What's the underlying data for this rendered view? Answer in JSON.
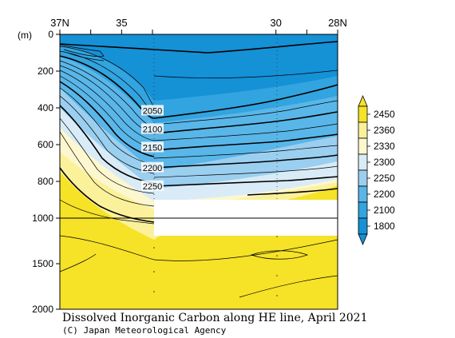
{
  "chart_data": {
    "type": "heatmap",
    "title": "Dissolved Inorganic Carbon along HE line, April 2021",
    "credit": "(C) Japan Meteorological Agency",
    "x_axis": {
      "labels": [
        {
          "lat": 37,
          "text": "37N"
        },
        {
          "lat": 35,
          "text": "35"
        },
        {
          "lat": 30,
          "text": "30"
        },
        {
          "lat": 28,
          "text": "28N"
        }
      ],
      "extra_ticks": [
        36,
        34,
        29
      ],
      "range": [
        37,
        28
      ]
    },
    "y_axis": {
      "unit": "(m)",
      "ticks": [
        {
          "depth": 0,
          "text": "0"
        },
        {
          "depth": 200,
          "text": "200"
        },
        {
          "depth": 400,
          "text": "400"
        },
        {
          "depth": 600,
          "text": "600"
        },
        {
          "depth": 800,
          "text": "800"
        },
        {
          "depth": 1000,
          "text": "1000"
        },
        {
          "depth": 1500,
          "text": "1500"
        },
        {
          "depth": 2000,
          "text": "2000"
        }
      ],
      "range": [
        0,
        2000
      ],
      "scale_break_at": 1000
    },
    "contour_labels": [
      {
        "value": "2050",
        "lat": 34.0,
        "depth": 415
      },
      {
        "value": "2100",
        "lat": 34.0,
        "depth": 515
      },
      {
        "value": "2150",
        "lat": 34.0,
        "depth": 615
      },
      {
        "value": "2200",
        "lat": 34.0,
        "depth": 725
      },
      {
        "value": "2250",
        "lat": 34.0,
        "depth": 825
      }
    ],
    "contour_depths_east": [
      {
        "value": 2050,
        "depth": 280
      },
      {
        "value": 2100,
        "depth": 365
      },
      {
        "value": 2150,
        "depth": 460
      },
      {
        "value": 2200,
        "depth": 560
      },
      {
        "value": 2250,
        "depth": 690
      }
    ],
    "colorbar": {
      "levels": [
        {
          "value": "2450",
          "color": "#f6e227"
        },
        {
          "value": "2360",
          "color": "#fbf19b"
        },
        {
          "value": "2330",
          "color": "#fdf7cf"
        },
        {
          "value": "2300",
          "color": "#d9ebf7"
        },
        {
          "value": "2250",
          "color": "#9bcff0"
        },
        {
          "value": "2200",
          "color": "#59b6e8"
        },
        {
          "value": "2100",
          "color": "#32a4df"
        },
        {
          "value": "1800",
          "color": "#1591d6"
        }
      ]
    },
    "no_data_region": {
      "lat_from": 34.9,
      "lat_to": 28,
      "depth_from": 900,
      "depth_to": 1200
    }
  }
}
